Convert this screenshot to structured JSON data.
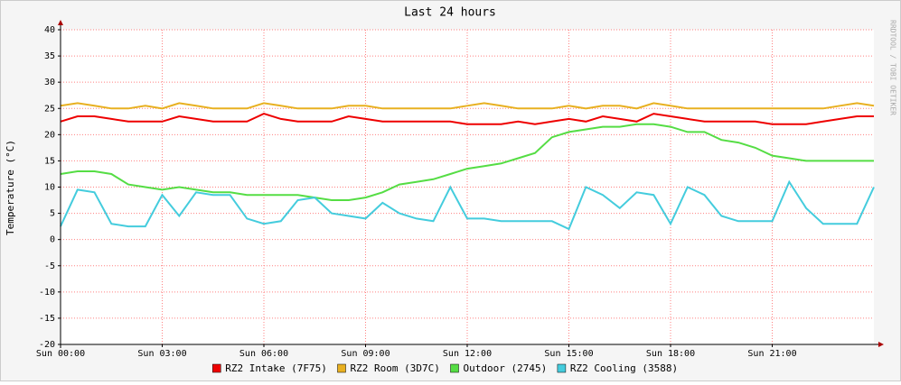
{
  "chart_data": {
    "type": "line",
    "title": "Last 24 hours",
    "y_label": "Temperature (°C)",
    "watermark": "RRDTOOL / TOBI OETIKER",
    "xlim": [
      0,
      24
    ],
    "xticks": [
      {
        "value": 0,
        "label": "Sun 00:00"
      },
      {
        "value": 3,
        "label": "Sun 03:00"
      },
      {
        "value": 6,
        "label": "Sun 06:00"
      },
      {
        "value": 9,
        "label": "Sun 09:00"
      },
      {
        "value": 12,
        "label": "Sun 12:00"
      },
      {
        "value": 15,
        "label": "Sun 15:00"
      },
      {
        "value": 18,
        "label": "Sun 18:00"
      },
      {
        "value": 21,
        "label": "Sun 21:00"
      }
    ],
    "ylim": [
      -20,
      40
    ],
    "yticks": [
      -20,
      -15,
      -10,
      -5,
      0,
      5,
      10,
      15,
      20,
      25,
      30,
      35,
      40
    ],
    "grid": true,
    "legend": "bottom",
    "x": [
      0,
      0.5,
      1,
      1.5,
      2,
      2.5,
      3,
      3.5,
      4,
      4.5,
      5,
      5.5,
      6,
      6.5,
      7,
      7.5,
      8,
      8.5,
      9,
      9.5,
      10,
      10.5,
      11,
      11.5,
      12,
      12.5,
      13,
      13.5,
      14,
      14.5,
      15,
      15.5,
      16,
      16.5,
      17,
      17.5,
      18,
      18.5,
      19,
      19.5,
      20,
      20.5,
      21,
      21.5,
      22,
      22.5,
      23,
      23.5,
      24
    ],
    "series": [
      {
        "name": "RZ2 Intake (7F75)",
        "color": "#ee0000",
        "values": [
          22.5,
          23.5,
          23.5,
          23,
          22.5,
          22.5,
          22.5,
          23.5,
          23,
          22.5,
          22.5,
          22.5,
          24,
          23,
          22.5,
          22.5,
          22.5,
          23.5,
          23,
          22.5,
          22.5,
          22.5,
          22.5,
          22.5,
          22,
          22,
          22,
          22.5,
          22,
          22.5,
          23,
          22.5,
          23.5,
          23,
          22.5,
          24,
          23.5,
          23,
          22.5,
          22.5,
          22.5,
          22.5,
          22,
          22,
          22,
          22.5,
          23,
          23.5,
          23.5
        ]
      },
      {
        "name": "RZ2 Room (3D7C)",
        "color": "#e8b020",
        "values": [
          25.5,
          26,
          25.5,
          25,
          25,
          25.5,
          25,
          26,
          25.5,
          25,
          25,
          25,
          26,
          25.5,
          25,
          25,
          25,
          25.5,
          25.5,
          25,
          25,
          25,
          25,
          25,
          25.5,
          26,
          25.5,
          25,
          25,
          25,
          25.5,
          25,
          25.5,
          25.5,
          25,
          26,
          25.5,
          25,
          25,
          25,
          25,
          25,
          25,
          25,
          25,
          25,
          25.5,
          26,
          25.5
        ]
      },
      {
        "name": "Outdoor (2745)",
        "color": "#55dd44",
        "values": [
          12.5,
          13,
          13,
          12.5,
          10.5,
          10,
          9.5,
          10,
          9.5,
          9,
          9,
          8.5,
          8.5,
          8.5,
          8.5,
          8,
          7.5,
          7.5,
          8,
          9,
          10.5,
          11,
          11.5,
          12.5,
          13.5,
          14,
          14.5,
          15.5,
          16.5,
          19.5,
          20.5,
          21,
          21.5,
          21.5,
          22,
          22,
          21.5,
          20.5,
          20.5,
          19,
          18.5,
          17.5,
          16,
          15.5,
          15,
          15,
          15,
          15,
          15
        ]
      },
      {
        "name": "RZ2 Cooling (3588)",
        "color": "#44ccdd",
        "values": [
          2.5,
          9.5,
          9,
          3,
          2.5,
          2.5,
          8.5,
          4.5,
          9,
          8.5,
          8.5,
          4,
          3,
          3.5,
          7.5,
          8,
          5,
          4.5,
          4,
          7,
          5,
          4,
          3.5,
          10,
          4,
          4,
          3.5,
          3.5,
          3.5,
          3.5,
          2,
          10,
          8.5,
          6,
          9,
          8.5,
          3,
          10,
          8.5,
          4.5,
          3.5,
          3.5,
          3.5,
          11,
          6,
          3,
          3,
          3,
          10
        ]
      }
    ]
  }
}
